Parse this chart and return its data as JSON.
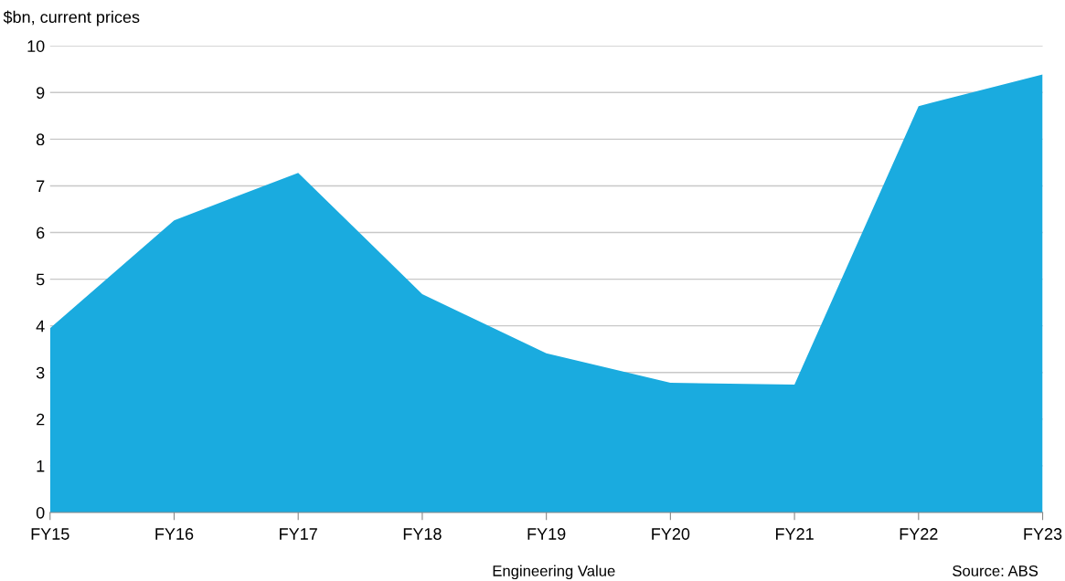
{
  "chart_data": {
    "type": "area",
    "categories": [
      "FY15",
      "FY16",
      "FY17",
      "FY18",
      "FY19",
      "FY20",
      "FY21",
      "FY22",
      "FY23"
    ],
    "values": [
      3.95,
      6.26,
      7.28,
      4.68,
      3.41,
      2.78,
      2.74,
      8.71,
      9.39
    ],
    "color": "#1aabdf",
    "ylabel": "$bn, current prices",
    "xlabel": "Engineering Value",
    "annotations": [
      "Source: ABS"
    ],
    "ylim": [
      0,
      10
    ],
    "yticks": [
      0,
      1,
      2,
      3,
      4,
      5,
      6,
      7,
      8,
      9,
      10
    ],
    "grid": "y",
    "legend": false
  }
}
